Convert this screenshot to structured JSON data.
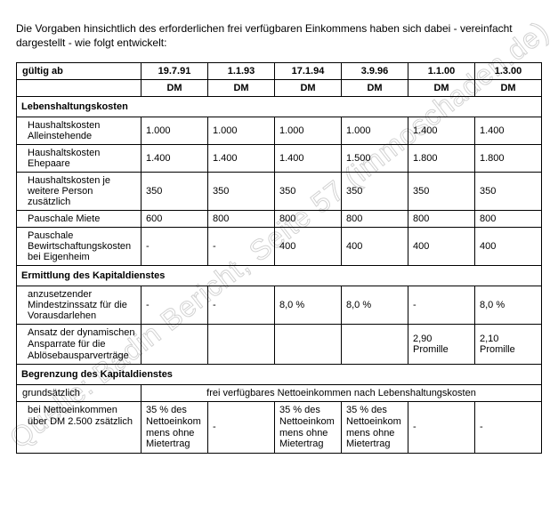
{
  "intro": "Die Vorgaben hinsichtlich des erforderlichen frei verfügbaren Einkommens haben sich dabei - vereinfacht dargestellt - wie folgt entwickelt:",
  "watermark": "Quelle: Badin Bericht, Seite 57 (immoschaden.de)",
  "header": {
    "gueltig_ab": "gültig ab",
    "dates": [
      "19.7.91",
      "1.1.93",
      "17.1.94",
      "3.9.96",
      "1.1.00",
      "1.3.00"
    ],
    "currency": "DM"
  },
  "sections": {
    "lebenshaltung": {
      "title": "Lebenshaltungskosten",
      "rows": [
        {
          "label": "Haushaltskosten Alleinstehende",
          "vals": [
            "1.000",
            "1.000",
            "1.000",
            "1.000",
            "1.400",
            "1.400"
          ]
        },
        {
          "label": "Haushaltskosten Ehepaare",
          "vals": [
            "1.400",
            "1.400",
            "1.400",
            "1.500",
            "1.800",
            "1.800"
          ]
        },
        {
          "label": "Haushaltskosten je weitere Person zusätzlich",
          "vals": [
            "350",
            "350",
            "350",
            "350",
            "350",
            "350"
          ]
        },
        {
          "label": "Pauschale Miete",
          "vals": [
            "600",
            "800",
            "800",
            "800",
            "800",
            "800"
          ]
        },
        {
          "label": "Pauschale Bewirtschaftungskosten bei Eigenheim",
          "vals": [
            "-",
            "-",
            "400",
            "400",
            "400",
            "400"
          ]
        }
      ]
    },
    "kapitaldienst_ermittlung": {
      "title": "Ermittlung des Kapitaldienstes",
      "rows": [
        {
          "label": "anzusetzender Mindestzinssatz für die Vorausdarlehen",
          "vals": [
            "-",
            "-",
            "8,0 %",
            "8,0 %",
            "-",
            "8,0 %"
          ]
        },
        {
          "label": "Ansatz der dynamischen Ansparrate für die Ablösebausparverträge",
          "vals": [
            "",
            "",
            "",
            "",
            "2,90 Promille",
            "2,10 Promille"
          ]
        }
      ]
    },
    "kapitaldienst_begrenzung": {
      "title": "Begrenzung des Kapitaldienstes",
      "grundsaetzlich_label": "grundsätzlich",
      "grundsaetzlich_text": "frei verfügbares Nettoeinkommen nach Lebenshaltungskosten",
      "row": {
        "label": "bei Nettoeinkommen über DM 2.500 zsätzlich",
        "vals": [
          "35 % des Nettoeinkommens ohne Mietertrag",
          "-",
          "35 % des Nettoeinkommens ohne Mietertrag",
          "35 % des Nettoeinkommens ohne Mietertrag",
          "-",
          "-"
        ]
      }
    }
  }
}
